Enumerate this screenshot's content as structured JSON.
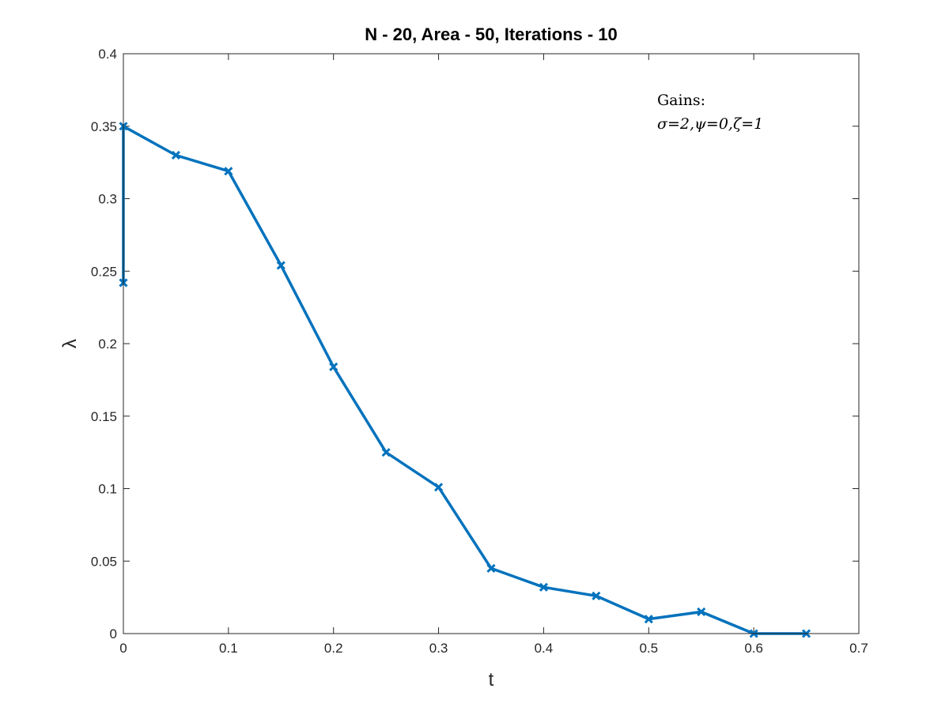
{
  "chart_data": {
    "type": "line",
    "title": "N - 20, Area - 50, Iterations - 10",
    "xlabel": "t",
    "ylabel": "λ",
    "xlim": [
      0,
      0.7
    ],
    "ylim": [
      0,
      0.4
    ],
    "x_ticks": [
      "0",
      "0.1",
      "0.2",
      "0.3",
      "0.4",
      "0.5",
      "0.6",
      "0.7"
    ],
    "y_ticks": [
      "0",
      "0.05",
      "0.1",
      "0.15",
      "0.2",
      "0.25",
      "0.3",
      "0.35",
      "0.4"
    ],
    "grid": false,
    "marker": "x",
    "line_color": "#0072BD",
    "series": [
      {
        "x": [
          0,
          0,
          0.05,
          0.1,
          0.15,
          0.2,
          0.25,
          0.3,
          0.35,
          0.4,
          0.45,
          0.5,
          0.55,
          0.6,
          0.65
        ],
        "y": [
          0.242,
          0.35,
          0.33,
          0.319,
          0.254,
          0.184,
          0.125,
          0.101,
          0.045,
          0.032,
          0.026,
          0.01,
          0.015,
          0.0,
          0.0
        ]
      }
    ],
    "annotation": {
      "line1": "Gains:",
      "line2": "σ=2,ψ=0,ζ=1"
    }
  }
}
